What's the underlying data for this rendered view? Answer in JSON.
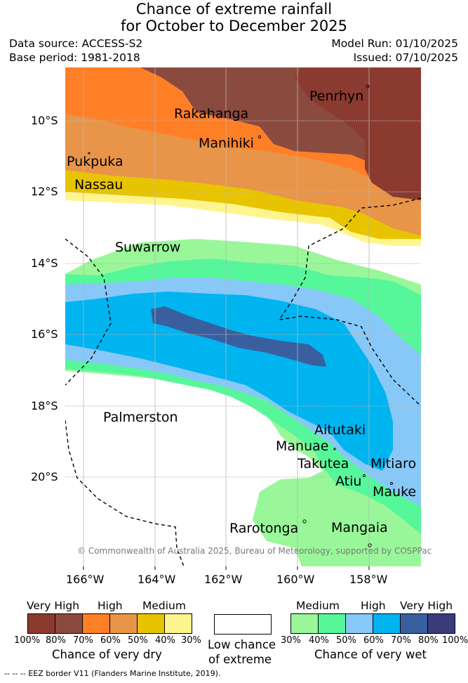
{
  "header": {
    "title_line1": "Chance of extreme rainfall",
    "title_line2": "for October to December 2025",
    "data_source": "Data source: ACCESS-S2",
    "base_period": "Base period: 1981-2018",
    "model_run": "Model Run: 01/10/2025",
    "issued": "Issued: 07/10/2025"
  },
  "map": {
    "lat_labels": [
      "10°S",
      "12°S",
      "14°S",
      "16°S",
      "18°S",
      "20°S"
    ],
    "lon_labels": [
      "166°W",
      "164°W",
      "162°W",
      "160°W",
      "158°W"
    ],
    "places": [
      "Penrhyn",
      "Rakahanga",
      "Manihiki",
      "Pukpuka",
      "Nassau",
      "Suwarrow",
      "Palmerston",
      "Aitutaki",
      "Manuae",
      "Takutea",
      "Mitiaro",
      "Atiu",
      "Mauke",
      "Rarotonga",
      "Mangaia"
    ],
    "copyright": "© Commonwealth of Australia 2025, Bureau of Meteorology, supported by COSPPac"
  },
  "legend_dry": {
    "labels": [
      "Very High",
      "High",
      "Medium"
    ],
    "ticks": [
      "100%",
      "80%",
      "70%",
      "60%",
      "50%",
      "40%",
      "30%"
    ],
    "colors": [
      "#8b3a2f",
      "#8b4a3e",
      "#ff7f27",
      "#e8954a",
      "#e8c400",
      "#fff58f"
    ],
    "caption": "Chance of very dry"
  },
  "legend_neutral": {
    "caption_line1": "Low chance",
    "caption_line2": "of extreme",
    "color": "#ffffff"
  },
  "legend_wet": {
    "labels": [
      "Medium",
      "High",
      "Very High"
    ],
    "ticks": [
      "30%",
      "40%",
      "50%",
      "60%",
      "70%",
      "80%",
      "100%"
    ],
    "colors": [
      "#99f799",
      "#56f79b",
      "#88c8f8",
      "#00b4f0",
      "#3a5f9f",
      "#3c3c7a"
    ],
    "caption": "Chance of very wet"
  },
  "footnote": "-- -- -- EEZ border V11 (Flanders Marine Institute, 2019)."
}
